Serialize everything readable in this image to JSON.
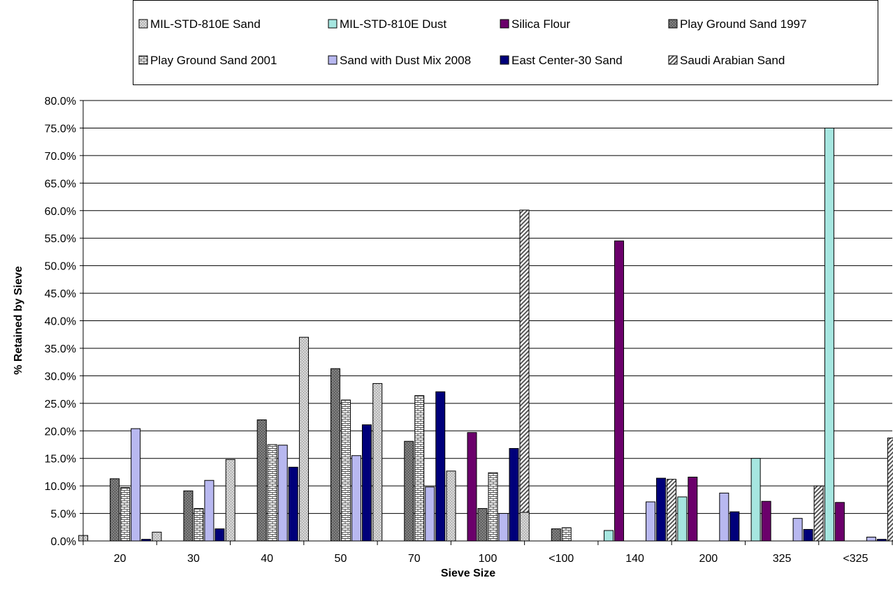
{
  "chart_data": {
    "type": "bar",
    "title": "",
    "xlabel": "Sieve Size",
    "ylabel": "% Retained by Sieve",
    "ylim": [
      0,
      0.8
    ],
    "yticks": [
      "0.0%",
      "5.0%",
      "10.0%",
      "15.0%",
      "20.0%",
      "25.0%",
      "30.0%",
      "35.0%",
      "40.0%",
      "45.0%",
      "50.0%",
      "55.0%",
      "60.0%",
      "65.0%",
      "70.0%",
      "75.0%",
      "80.0%"
    ],
    "grid": "horizontal",
    "legend_position": "top",
    "categories": [
      "20",
      "30",
      "40",
      "50",
      "70",
      "100",
      "<100",
      "140",
      "200",
      "325",
      "<325"
    ],
    "series": [
      {
        "name": "MIL-STD-810E Sand",
        "color": "#c8c8c8",
        "pattern": "dots",
        "values": [
          0.01,
          0.016,
          0.148,
          0.37,
          0.286,
          0.127,
          0.052,
          0,
          0,
          0,
          0
        ]
      },
      {
        "name": "MIL-STD-810E Dust",
        "color": "#a6e6e0",
        "pattern": "solid",
        "values": [
          0,
          0,
          0,
          0,
          0,
          0,
          0,
          0.019,
          0.08,
          0.15,
          0.75
        ]
      },
      {
        "name": "Silica Flour",
        "color": "#6b006b",
        "pattern": "solid",
        "values": [
          0,
          0,
          0,
          0,
          0,
          0.197,
          0,
          0.545,
          0.116,
          0.072,
          0.07
        ]
      },
      {
        "name": "Play Ground Sand 1997",
        "color": "#7a7a7a",
        "pattern": "dots",
        "values": [
          0.113,
          0.091,
          0.22,
          0.313,
          0.181,
          0.059,
          0.022,
          0,
          0,
          0,
          0
        ]
      },
      {
        "name": "Play Ground Sand 2001",
        "color": "#ffffff",
        "pattern": "bricks",
        "values": [
          0.097,
          0.059,
          0.175,
          0.256,
          0.264,
          0.124,
          0.024,
          0,
          0,
          0,
          0
        ]
      },
      {
        "name": "Sand with Dust Mix 2008",
        "color": "#b8b8f0",
        "pattern": "solid",
        "values": [
          0.204,
          0.11,
          0.174,
          0.155,
          0.098,
          0.05,
          0,
          0.071,
          0.087,
          0.041,
          0.007
        ]
      },
      {
        "name": "East Center-30 Sand",
        "color": "#00007a",
        "pattern": "solid",
        "values": [
          0.003,
          0.022,
          0.134,
          0.211,
          0.271,
          0.168,
          0,
          0.114,
          0.053,
          0.021,
          0.003
        ]
      },
      {
        "name": "Saudi Arabian Sand",
        "color": "#ffffff",
        "pattern": "diagonal",
        "values": [
          0,
          0,
          0,
          0,
          0,
          0.601,
          0,
          0.112,
          0,
          0.1,
          0.187
        ]
      }
    ]
  }
}
